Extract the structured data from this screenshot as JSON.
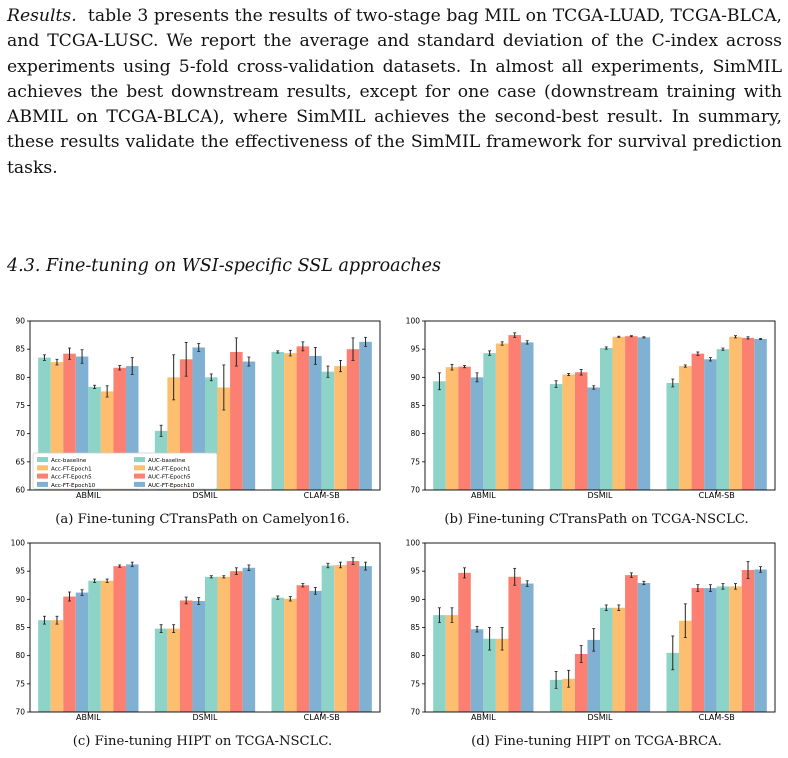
{
  "text": {
    "lead": "Results.",
    "body": "table 3 presents the results of two-stage bag MIL on TCGA-LUAD, TCGA-BLCA, and TCGA-LUSC. We report the average and standard deviation of the C-index across experiments using 5-fold cross-validation datasets. In almost all experiments, SimMIL achieves the best downstream results, except for one case (downstream training with ABMIL on TCGA-BLCA), where SimMIL achieves the second-best result. In summary, these results validate the effectiveness of the SimMIL framework for survival prediction tasks.",
    "heading": "4.3. Fine-tuning on WSI-specific SSL approaches"
  },
  "colors": [
    "#8dd3c7",
    "#fdbf6f",
    "#fb8072",
    "#80b1d3",
    "#8dd3c7",
    "#fdbf6f",
    "#fb8072",
    "#80b1d3"
  ],
  "chart_data": [
    {
      "type": "bar",
      "caption": "(a) Fine-tuning CTransPath on Camelyon16.",
      "categories": [
        "ABMIL",
        "DSMIL",
        "CLAM-SB"
      ],
      "ylim": [
        60,
        90
      ],
      "yticks": [
        60,
        65,
        70,
        75,
        80,
        85,
        90
      ],
      "legend": {
        "placement": "lower-left",
        "labels": [
          "Acc-baseline",
          "Acc-FT-Epoch1",
          "Acc-FT-Epoch5",
          "Acc-FT-Epoch10",
          "AUC-baseline",
          "AUC-FT-Epoch1",
          "AUC-FT-Epoch5",
          "AUC-FT-Epoch10"
        ]
      },
      "series": [
        {
          "values": [
            83.5,
            70.5,
            84.5
          ],
          "err": [
            0.5,
            1.0,
            0.2
          ]
        },
        {
          "values": [
            82.7,
            80.0,
            84.3
          ],
          "err": [
            0.5,
            4.0,
            0.5
          ]
        },
        {
          "values": [
            84.2,
            83.2,
            85.5
          ],
          "err": [
            1.0,
            3.0,
            0.8
          ]
        },
        {
          "values": [
            83.7,
            85.3,
            83.8
          ],
          "err": [
            1.2,
            0.7,
            1.5
          ]
        },
        {
          "values": [
            78.3,
            80.0,
            81.0
          ],
          "err": [
            0.3,
            0.6,
            1.0
          ]
        },
        {
          "values": [
            77.5,
            78.2,
            82.0
          ],
          "err": [
            1.0,
            4.0,
            1.0
          ]
        },
        {
          "values": [
            81.7,
            84.5,
            85.0
          ],
          "err": [
            0.4,
            2.5,
            2.0
          ]
        },
        {
          "values": [
            82.0,
            82.8,
            86.3
          ],
          "err": [
            1.5,
            0.8,
            0.8
          ]
        }
      ]
    },
    {
      "type": "bar",
      "caption": "(b) Fine-tuning CTransPath on TCGA-NSCLC.",
      "categories": [
        "ABMIL",
        "DSMIL",
        "CLAM-SB"
      ],
      "ylim": [
        70,
        100
      ],
      "yticks": [
        70,
        75,
        80,
        85,
        90,
        95,
        100
      ],
      "series": [
        {
          "values": [
            89.3,
            88.8,
            89.0
          ],
          "err": [
            1.5,
            0.6,
            0.7
          ]
        },
        {
          "values": [
            91.8,
            90.5,
            92.0
          ],
          "err": [
            0.5,
            0.2,
            0.2
          ]
        },
        {
          "values": [
            91.9,
            90.9,
            94.2
          ],
          "err": [
            0.2,
            0.5,
            0.3
          ]
        },
        {
          "values": [
            90.0,
            88.2,
            93.2
          ],
          "err": [
            0.8,
            0.3,
            0.3
          ]
        },
        {
          "values": [
            94.3,
            95.2,
            95.0
          ],
          "err": [
            0.4,
            0.2,
            0.2
          ]
        },
        {
          "values": [
            96.0,
            97.2,
            97.2
          ],
          "err": [
            0.3,
            0.1,
            0.2
          ]
        },
        {
          "values": [
            97.5,
            97.3,
            97.0
          ],
          "err": [
            0.4,
            0.1,
            0.2
          ]
        },
        {
          "values": [
            96.2,
            97.1,
            96.8
          ],
          "err": [
            0.3,
            0.1,
            0.1
          ]
        }
      ]
    },
    {
      "type": "bar",
      "caption": "(c) Fine-tuning HIPT on TCGA-NSCLC.",
      "categories": [
        "ABMIL",
        "DSMIL",
        "CLAM-SB"
      ],
      "ylim": [
        70,
        100
      ],
      "yticks": [
        70,
        75,
        80,
        85,
        90,
        95,
        100
      ],
      "series": [
        {
          "values": [
            86.3,
            84.8,
            90.3
          ],
          "err": [
            0.7,
            0.7,
            0.3
          ]
        },
        {
          "values": [
            86.3,
            84.8,
            90.1
          ],
          "err": [
            0.7,
            0.7,
            0.4
          ]
        },
        {
          "values": [
            90.5,
            89.8,
            92.5
          ],
          "err": [
            0.8,
            0.6,
            0.3
          ]
        },
        {
          "values": [
            91.2,
            89.7,
            91.5
          ],
          "err": [
            0.5,
            0.6,
            0.6
          ]
        },
        {
          "values": [
            93.3,
            94.0,
            96.0
          ],
          "err": [
            0.3,
            0.2,
            0.4
          ]
        },
        {
          "values": [
            93.3,
            94.0,
            96.1
          ],
          "err": [
            0.3,
            0.2,
            0.5
          ]
        },
        {
          "values": [
            95.9,
            95.0,
            96.8
          ],
          "err": [
            0.2,
            0.6,
            0.6
          ]
        },
        {
          "values": [
            96.2,
            95.6,
            95.9
          ],
          "err": [
            0.4,
            0.5,
            0.7
          ]
        }
      ]
    },
    {
      "type": "bar",
      "caption": "(d) Fine-tuning HIPT on TCGA-BRCA.",
      "categories": [
        "ABMIL",
        "DSMIL",
        "CLAM-SB"
      ],
      "ylim": [
        70,
        100
      ],
      "yticks": [
        70,
        75,
        80,
        85,
        90,
        95,
        100
      ],
      "series": [
        {
          "values": [
            87.2,
            75.7,
            80.5
          ],
          "err": [
            1.3,
            1.5,
            3.0
          ]
        },
        {
          "values": [
            87.2,
            75.9,
            86.2
          ],
          "err": [
            1.3,
            1.5,
            3.0
          ]
        },
        {
          "values": [
            94.7,
            80.3,
            92.0
          ],
          "err": [
            0.9,
            1.5,
            0.6
          ]
        },
        {
          "values": [
            84.7,
            82.8,
            92.0
          ],
          "err": [
            0.5,
            2.0,
            0.6
          ]
        },
        {
          "values": [
            83.0,
            88.5,
            92.3
          ],
          "err": [
            2.0,
            0.5,
            0.5
          ]
        },
        {
          "values": [
            83.0,
            88.5,
            92.3
          ],
          "err": [
            2.0,
            0.5,
            0.5
          ]
        },
        {
          "values": [
            94.0,
            94.3,
            95.2
          ],
          "err": [
            1.5,
            0.4,
            1.5
          ]
        },
        {
          "values": [
            92.8,
            92.9,
            95.3
          ],
          "err": [
            0.5,
            0.3,
            0.5
          ]
        }
      ]
    }
  ]
}
